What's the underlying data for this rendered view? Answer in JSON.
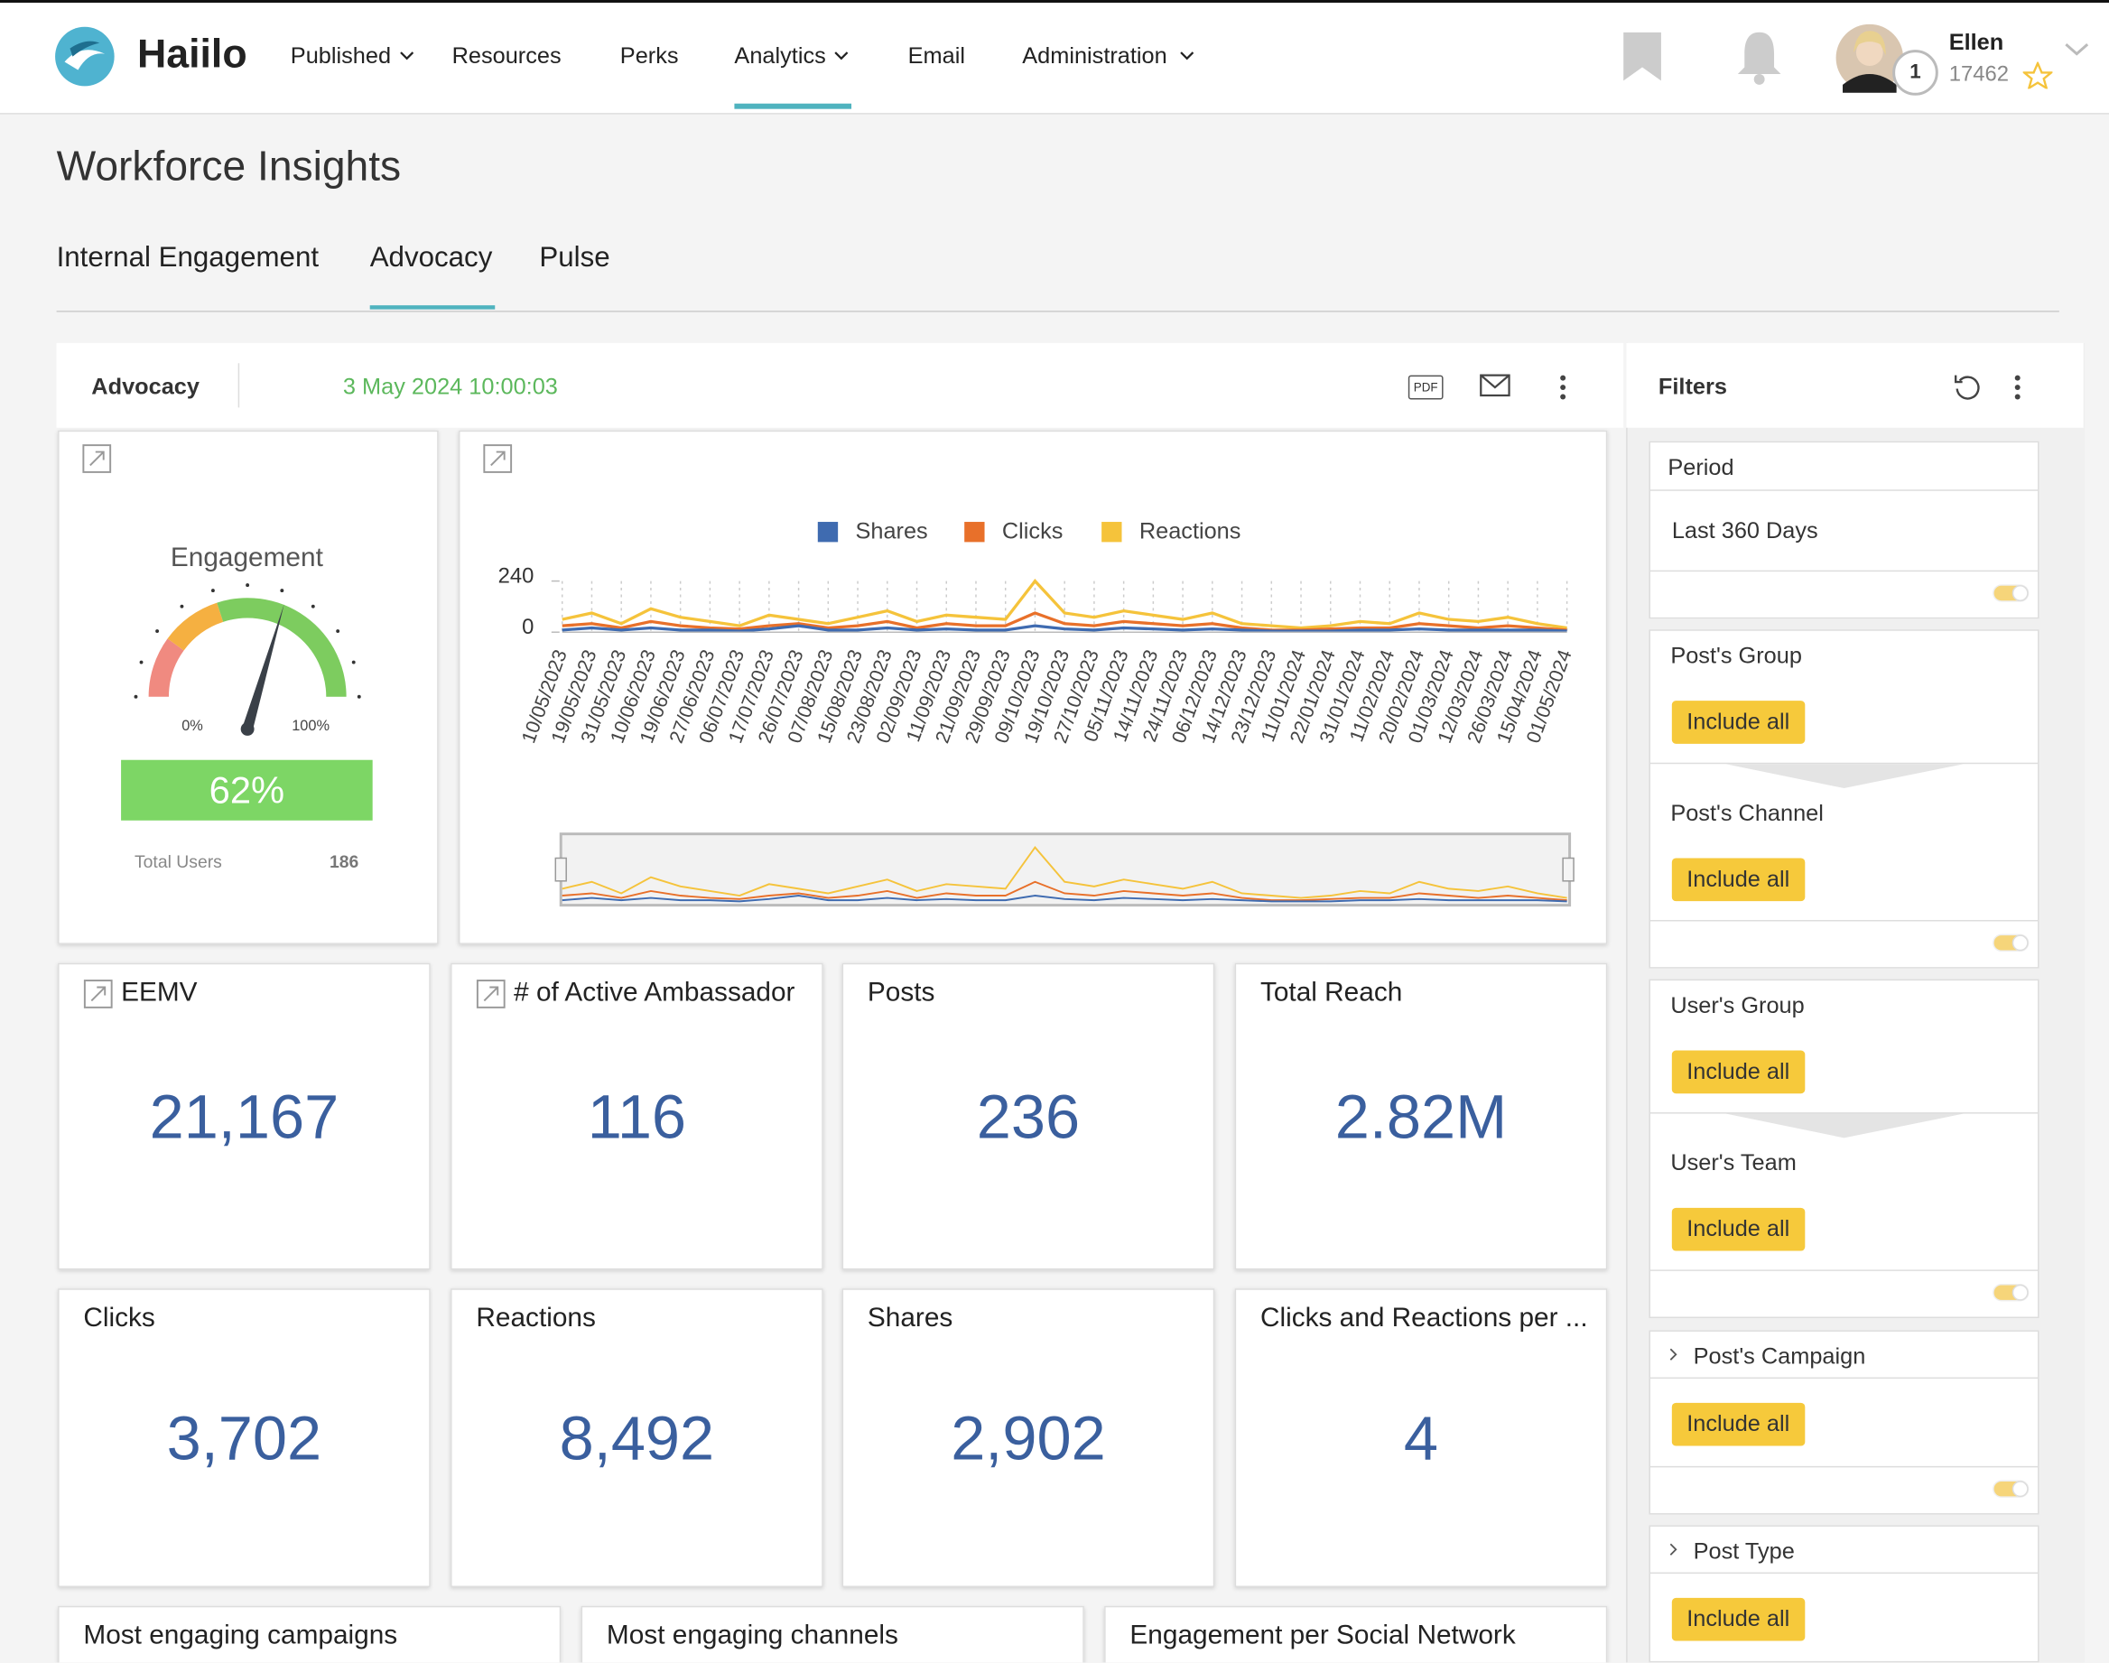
{
  "nav": {
    "brand": "Haiilo",
    "items": [
      "Published",
      "Resources",
      "Perks",
      "Analytics",
      "Email",
      "Administration"
    ],
    "user": {
      "name": "Ellen",
      "points": "17462",
      "badge": "1"
    }
  },
  "page": {
    "title": "Workforce Insights",
    "tabs": [
      "Internal Engagement",
      "Advocacy",
      "Pulse"
    ]
  },
  "dashboard": {
    "name": "Advocacy",
    "timestamp": "3 May 2024 10:00:03",
    "pdf": "PDF"
  },
  "gauge": {
    "title": "Engagement",
    "min": 0,
    "max": 100,
    "min_label": "0%",
    "max_label": "100%",
    "value": 62,
    "value_label": "62%",
    "bands": [
      {
        "to": 20,
        "color": "#f08a80"
      },
      {
        "to": 40,
        "color": "#f5b041"
      },
      {
        "to": 100,
        "color": "#7dcc5f"
      }
    ],
    "total_users_label": "Total Users",
    "total_users": "186"
  },
  "chart_data": {
    "type": "line",
    "x": [
      "10/05/2023",
      "19/05/2023",
      "31/05/2023",
      "10/06/2023",
      "19/06/2023",
      "27/06/2023",
      "06/07/2023",
      "17/07/2023",
      "26/07/2023",
      "07/08/2023",
      "15/08/2023",
      "23/08/2023",
      "02/09/2023",
      "11/09/2023",
      "21/09/2023",
      "29/09/2023",
      "09/10/2023",
      "19/10/2023",
      "27/10/2023",
      "05/11/2023",
      "14/11/2023",
      "24/11/2023",
      "06/12/2023",
      "14/12/2023",
      "23/12/2023",
      "11/01/2024",
      "22/01/2024",
      "31/01/2024",
      "11/02/2024",
      "20/02/2024",
      "01/03/2024",
      "12/03/2024",
      "26/03/2024",
      "15/04/2024",
      "01/05/2024"
    ],
    "series": [
      {
        "name": "Shares",
        "color": "#3f6bb0",
        "values": [
          10,
          20,
          10,
          20,
          10,
          10,
          5,
          15,
          30,
          10,
          10,
          20,
          10,
          15,
          10,
          10,
          30,
          15,
          10,
          20,
          15,
          10,
          15,
          10,
          5,
          5,
          5,
          10,
          10,
          15,
          10,
          10,
          10,
          10,
          5
        ]
      },
      {
        "name": "Clicks",
        "color": "#e8702a",
        "values": [
          30,
          40,
          20,
          50,
          30,
          20,
          15,
          30,
          40,
          20,
          30,
          50,
          20,
          40,
          30,
          30,
          90,
          40,
          30,
          50,
          40,
          30,
          40,
          20,
          10,
          10,
          15,
          20,
          20,
          40,
          30,
          20,
          30,
          20,
          10
        ]
      },
      {
        "name": "Reactions",
        "color": "#f5c33b",
        "values": [
          60,
          90,
          40,
          110,
          70,
          50,
          30,
          80,
          60,
          40,
          70,
          100,
          50,
          80,
          70,
          60,
          240,
          90,
          70,
          100,
          80,
          60,
          90,
          40,
          30,
          20,
          30,
          50,
          40,
          90,
          60,
          50,
          70,
          40,
          20
        ]
      }
    ],
    "ylim": [
      0,
      240
    ],
    "yticks": [
      0,
      240
    ],
    "grid": true
  },
  "kpis": [
    {
      "title": "EEMV",
      "value": "21,167"
    },
    {
      "title": "# of Active Ambassador",
      "value": "116"
    },
    {
      "title": "Posts",
      "value": "236"
    },
    {
      "title": "Total Reach",
      "value": "2.82M"
    },
    {
      "title": "Clicks",
      "value": "3,702"
    },
    {
      "title": "Reactions",
      "value": "8,492"
    },
    {
      "title": "Shares",
      "value": "2,902"
    },
    {
      "title": "Clicks and Reactions per ...",
      "value": "4"
    }
  ],
  "bottom_cards": [
    "Most engaging campaigns",
    "Most engaging channels",
    "Engagement per Social Network"
  ],
  "filters": {
    "title": "Filters",
    "cards": [
      {
        "sections": [
          {
            "label": "Period",
            "value": "Last 360 Days"
          }
        ]
      },
      {
        "sections": [
          {
            "label": "Post's Group",
            "value": "Include all"
          },
          {
            "label": "Post's Channel",
            "value": "Include all"
          }
        ]
      },
      {
        "sections": [
          {
            "label": "User's Group",
            "value": "Include all"
          },
          {
            "label": "User's Team",
            "value": "Include all"
          }
        ]
      },
      {
        "sections": [
          {
            "label": "Post's Campaign",
            "value": "Include all"
          }
        ]
      },
      {
        "sections": [
          {
            "label": "Post Type",
            "value": "Include all"
          }
        ]
      }
    ]
  }
}
